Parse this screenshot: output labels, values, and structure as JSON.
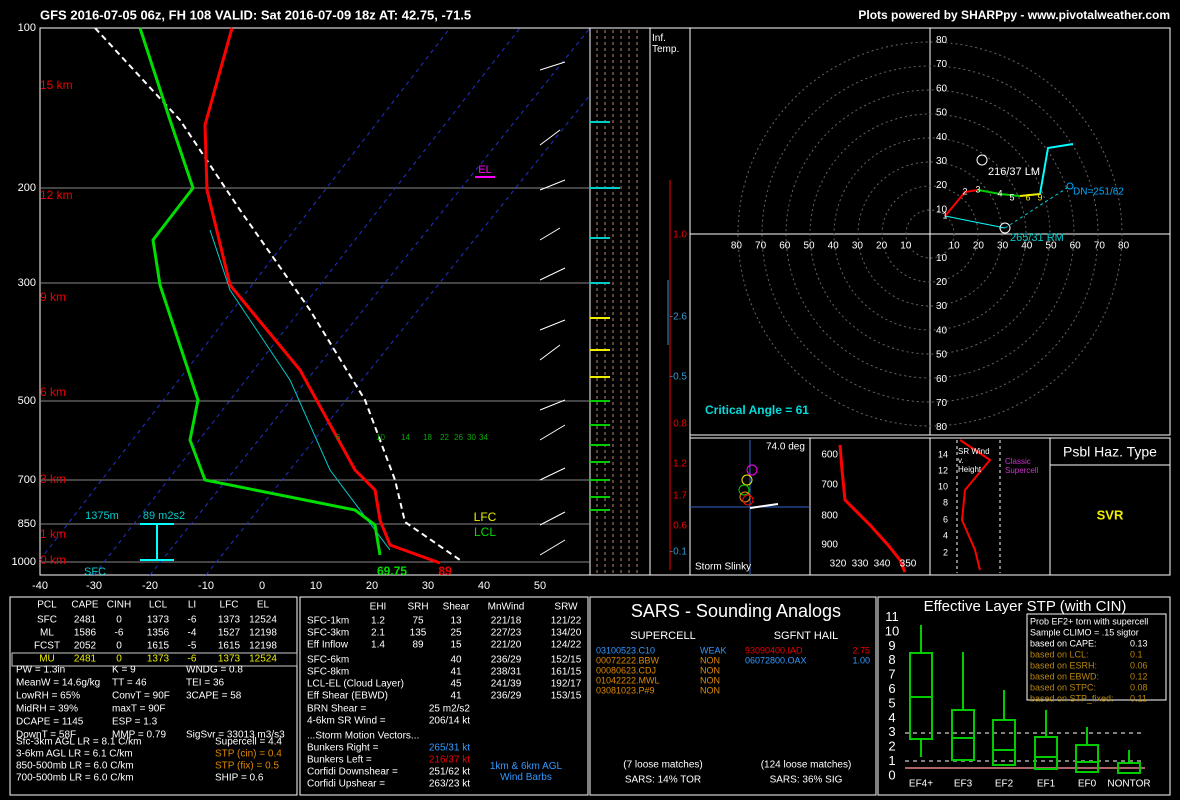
{
  "header": {
    "title": "GFS 2016-07-05 06z, FH 108   VALID: Sat 2016-07-09 18z   AT: 42.75, -71.5",
    "credit": "Plots powered by SHARPpy - www.pivotalweather.com"
  },
  "skewt": {
    "pressure_labels": [
      "100",
      "200",
      "300",
      "500",
      "700",
      "850",
      "1000"
    ],
    "height_labels": [
      "15 km",
      "12 km",
      "9 km",
      "6 km",
      "3 km",
      "1 km",
      "0 km"
    ],
    "temp_labels": [
      "-40",
      "-30",
      "-20",
      "-10",
      "0",
      "10",
      "20",
      "30",
      "40",
      "50"
    ],
    "mixing_ratio_labels": [
      "6",
      "10",
      "14",
      "18",
      "22",
      "26",
      "30",
      "34"
    ],
    "annotations": {
      "el": "EL",
      "lfc": "LFC",
      "lcl": "LCL",
      "eff_base": "1375m",
      "eff_srh": "89 m2s2",
      "sfc": "SFC",
      "dewpoint": "69.75",
      "temp": "89"
    }
  },
  "inferred_temp": {
    "title": "Inf.\nTemp.",
    "labels": [
      "1.0",
      "-2.6",
      "-0.5",
      "0.8",
      "1.2",
      "1.7",
      "0.6",
      "-0.1"
    ]
  },
  "hodograph": {
    "ring_labels": [
      "10",
      "20",
      "30",
      "40",
      "50",
      "60",
      "70",
      "80"
    ],
    "markers": [
      "1",
      "2",
      "3",
      "4",
      "5",
      "6",
      "9"
    ],
    "left_mover": "216/37 LM",
    "right_mover": "265/31 RM",
    "downshear": "DN=251/62",
    "critical_angle": "Critical Angle = 61"
  },
  "slinky": {
    "angle": "74.0 deg",
    "title": "Storm Slinky"
  },
  "theta_e": {
    "pressure_labels": [
      "600",
      "700",
      "800",
      "900"
    ],
    "theta_labels": [
      "320",
      "330",
      "340",
      "350"
    ]
  },
  "sr_wind": {
    "height_labels": [
      "14",
      "12",
      "10",
      "8",
      "6",
      "4",
      "2"
    ],
    "title": "SR Wind\nv.\nHeight",
    "classic": "Classic\nSupercell"
  },
  "hazard": {
    "title": "Psbl Haz. Type",
    "value": "SVR"
  },
  "thermo": {
    "header": [
      "PCL",
      "CAPE",
      "CINH",
      "LCL",
      "LI",
      "LFC",
      "EL"
    ],
    "rows": [
      [
        "SFC",
        "2481",
        "0",
        "1373",
        "-6",
        "1373",
        "12524"
      ],
      [
        "ML",
        "1586",
        "-6",
        "1356",
        "-4",
        "1527",
        "12198"
      ],
      [
        "FCST",
        "2052",
        "0",
        "1615",
        "-5",
        "1615",
        "12198"
      ],
      [
        "MU",
        "2481",
        "0",
        "1373",
        "-6",
        "1373",
        "12524"
      ]
    ],
    "indices": [
      [
        "PW = 1.3in",
        "K = 9",
        "WNDG = 0.8"
      ],
      [
        "MeanW = 14.6g/kg",
        "TT = 46",
        "TEI = 36"
      ],
      [
        "LowRH = 65%",
        "ConvT = 90F",
        "3CAPE = 58"
      ],
      [
        "MidRH = 39%",
        "maxT = 90F"
      ],
      [
        "DCAPE = 1145",
        "ESP = 1.3"
      ],
      [
        "DownT = 58F",
        "MMP = 0.79",
        "SigSvr = 33013 m3/s3"
      ]
    ],
    "lapse_rates": [
      "Sfc-3km AGL LR = 8.1 C/km",
      "3-6km AGL LR = 6.1 C/km",
      "850-500mb LR = 6.0 C/km",
      "700-500mb LR = 6.0 C/km"
    ],
    "composites": [
      "Supercell = 4.4",
      "STP (cin) = 0.4",
      "STP (fix) = 0.5",
      "SHIP = 0.6"
    ]
  },
  "kinematic": {
    "header": [
      "EHI",
      "SRH",
      "Shear",
      "MnWind",
      "SRW"
    ],
    "rows": [
      [
        "SFC-1km",
        "1.2",
        "75",
        "13",
        "221/18",
        "121/22"
      ],
      [
        "SFC-3km",
        "2.1",
        "135",
        "25",
        "227/23",
        "134/20"
      ],
      [
        "Eff Inflow",
        "1.4",
        "89",
        "15",
        "221/20",
        "124/22"
      ],
      [
        "SFC-6km",
        "40",
        "236/29",
        "152/15"
      ],
      [
        "SFC-8km",
        "41",
        "238/31",
        "161/15"
      ],
      [
        "LCL-EL (Cloud Layer)",
        "45",
        "241/39",
        "192/17"
      ],
      [
        "Eff Shear (EBWD)",
        "41",
        "236/29",
        "153/15"
      ]
    ],
    "extra": [
      [
        "BRN Shear =",
        "25 m2/s2"
      ],
      [
        "4-6km SR Wind =",
        "206/14 kt"
      ]
    ],
    "motion_title": "...Storm Motion Vectors...",
    "motion": [
      [
        "Bunkers Right =",
        "265/31 kt"
      ],
      [
        "Bunkers Left =",
        "216/37 kt"
      ],
      [
        "Corfidi Downshear =",
        "251/62 kt"
      ],
      [
        "Corfidi Upshear =",
        "263/23 kt"
      ]
    ],
    "barbs": "1km & 6km AGL\nWind Barbs"
  },
  "sars": {
    "title": "SARS - Sounding Analogs",
    "supercell_title": "SUPERCELL",
    "hail_title": "SGFNT HAIL",
    "supercell": [
      [
        "03100523.C10",
        "WEAK"
      ],
      [
        "00072222.BBW",
        "NON"
      ],
      [
        "00080623.CDJ",
        "NON"
      ],
      [
        "01042222.MWL",
        "NON"
      ],
      [
        "03081023.P#9",
        "NON"
      ]
    ],
    "hail": [
      [
        "93090400.IAD",
        "2.75"
      ],
      [
        "06072800.OAX",
        "1.00"
      ]
    ],
    "supercell_matches": "(7 loose matches)",
    "supercell_prob": "SARS: 14% TOR",
    "hail_matches": "(124 loose matches)",
    "hail_prob": "SARS: 36% SIG"
  },
  "stp": {
    "title": "Effective Layer STP (with CIN)",
    "yticks": [
      "0",
      "1",
      "2",
      "3",
      "4",
      "5",
      "6",
      "7",
      "8",
      "9",
      "10",
      "11"
    ],
    "categories": [
      "EF4+",
      "EF3",
      "EF2",
      "EF1",
      "EF0",
      "NONTOR"
    ],
    "legend_title": "Prob EF2+ torn with supercell",
    "legend_climo": "Sample CLIMO = .15 sigtor",
    "legend_rows": [
      [
        "based on CAPE:",
        "0.13"
      ],
      [
        "based on LCL:",
        "0.1"
      ],
      [
        "based on ESRH:",
        "0.06"
      ],
      [
        "based on EBWD:",
        "0.12"
      ],
      [
        "based on STPC:",
        "0.08"
      ],
      [
        "based on STP_fixed:",
        "0.11"
      ]
    ]
  }
}
